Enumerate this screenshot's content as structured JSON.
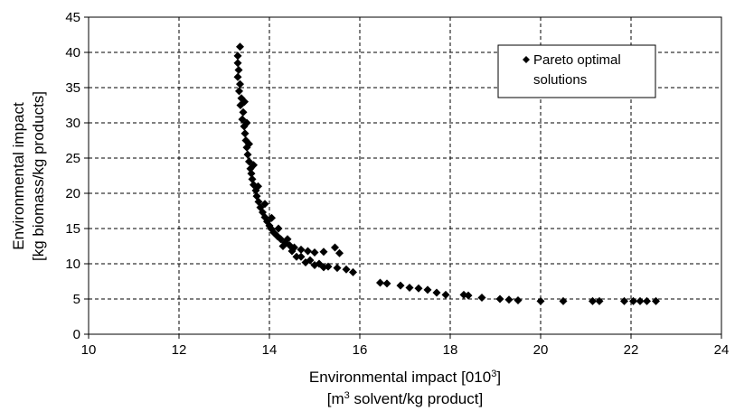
{
  "chart_data": {
    "type": "scatter",
    "title": "",
    "xlabel_line1": "Environmental impact [010",
    "xlabel_line1_sup": "3",
    "xlabel_line1_end": "]",
    "xlabel_line2_start": "[m",
    "xlabel_line2_sup": "3",
    "xlabel_line2_end": " solvent/kg product]",
    "ylabel_line1": "Environmental impact",
    "ylabel_line2": "[kg biomass/kg products]",
    "xlim": [
      10,
      24
    ],
    "ylim": [
      0,
      45
    ],
    "xticks": [
      "10",
      "12",
      "14",
      "16",
      "18",
      "20",
      "22",
      "24"
    ],
    "yticks": [
      "0",
      "5",
      "10",
      "15",
      "20",
      "25",
      "30",
      "35",
      "40",
      "45"
    ],
    "grid": true,
    "legend_position": "top-right",
    "series": [
      {
        "name": "Pareto optimal solutions",
        "color": "#000000",
        "marker": "diamond",
        "points": [
          [
            13.35,
            40.8
          ],
          [
            13.3,
            39.5
          ],
          [
            13.3,
            38.5
          ],
          [
            13.32,
            37.5
          ],
          [
            13.3,
            36.5
          ],
          [
            13.35,
            35.5
          ],
          [
            13.33,
            34.5
          ],
          [
            13.38,
            33.5
          ],
          [
            13.36,
            32.5
          ],
          [
            13.42,
            31.5
          ],
          [
            13.4,
            30.5
          ],
          [
            13.44,
            29.5
          ],
          [
            13.46,
            28.5
          ],
          [
            13.48,
            27.5
          ],
          [
            13.5,
            26.5
          ],
          [
            13.52,
            25.5
          ],
          [
            13.55,
            24.5
          ],
          [
            13.58,
            23.5
          ],
          [
            13.6,
            22.8
          ],
          [
            13.62,
            22.0
          ],
          [
            13.65,
            21.2
          ],
          [
            13.7,
            20.4
          ],
          [
            13.72,
            19.6
          ],
          [
            13.76,
            18.8
          ],
          [
            13.8,
            18.0
          ],
          [
            13.85,
            17.3
          ],
          [
            13.9,
            16.6
          ],
          [
            13.95,
            16.0
          ],
          [
            14.0,
            15.4
          ],
          [
            14.05,
            14.9
          ],
          [
            14.1,
            14.4
          ],
          [
            14.18,
            13.9
          ],
          [
            14.25,
            13.5
          ],
          [
            14.35,
            13.0
          ],
          [
            14.45,
            12.6
          ],
          [
            14.55,
            12.3
          ],
          [
            14.7,
            12.0
          ],
          [
            14.85,
            11.8
          ],
          [
            15.0,
            11.6
          ],
          [
            15.2,
            11.7
          ],
          [
            15.45,
            12.3
          ],
          [
            15.55,
            11.5
          ],
          [
            13.45,
            33.0
          ],
          [
            13.5,
            30.0
          ],
          [
            13.55,
            27.0
          ],
          [
            13.65,
            24.0
          ],
          [
            13.75,
            21.0
          ],
          [
            13.9,
            18.5
          ],
          [
            14.05,
            16.5
          ],
          [
            14.2,
            15.0
          ],
          [
            14.4,
            13.5
          ],
          [
            14.3,
            12.5
          ],
          [
            14.5,
            11.8
          ],
          [
            14.7,
            11.0
          ],
          [
            14.9,
            10.5
          ],
          [
            15.1,
            10.0
          ],
          [
            15.3,
            9.6
          ],
          [
            15.5,
            9.4
          ],
          [
            15.7,
            9.2
          ],
          [
            15.85,
            8.8
          ],
          [
            14.6,
            11.0
          ],
          [
            14.8,
            10.2
          ],
          [
            15.0,
            9.8
          ],
          [
            15.2,
            9.5
          ],
          [
            16.45,
            7.3
          ],
          [
            16.6,
            7.2
          ],
          [
            16.9,
            6.9
          ],
          [
            17.1,
            6.6
          ],
          [
            17.3,
            6.5
          ],
          [
            17.5,
            6.3
          ],
          [
            17.7,
            5.9
          ],
          [
            17.9,
            5.6
          ],
          [
            18.3,
            5.6
          ],
          [
            18.4,
            5.5
          ],
          [
            18.7,
            5.2
          ],
          [
            19.1,
            5.0
          ],
          [
            19.3,
            4.9
          ],
          [
            19.5,
            4.8
          ],
          [
            20.0,
            4.7
          ],
          [
            20.5,
            4.7
          ],
          [
            21.15,
            4.7
          ],
          [
            21.3,
            4.7
          ],
          [
            21.85,
            4.7
          ],
          [
            22.05,
            4.7
          ],
          [
            22.2,
            4.7
          ],
          [
            22.35,
            4.7
          ],
          [
            22.55,
            4.7
          ]
        ]
      }
    ]
  }
}
